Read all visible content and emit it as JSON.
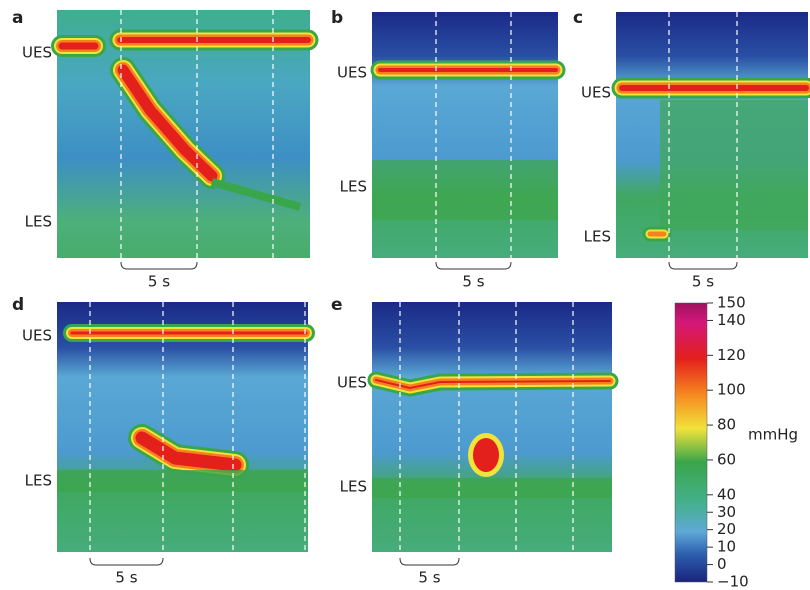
{
  "panels": [
    {
      "label": "a",
      "ues": "UES",
      "les": "LES",
      "scale": "5 s"
    },
    {
      "label": "b",
      "ues": "UES",
      "les": "LES",
      "scale": "5 s"
    },
    {
      "label": "c",
      "ues": "UES",
      "les": "LES",
      "scale": "5 s"
    },
    {
      "label": "d",
      "ues": "UES",
      "les": "LES",
      "scale": "5 s"
    },
    {
      "label": "e",
      "ues": "UES",
      "les": "LES",
      "scale": "5 s"
    }
  ],
  "colorbar": {
    "unit": "mmHg",
    "ticks": [
      150,
      140,
      120,
      100,
      80,
      60,
      40,
      30,
      20,
      10,
      0,
      {
        "value": -10,
        "label": "−10"
      }
    ]
  }
}
